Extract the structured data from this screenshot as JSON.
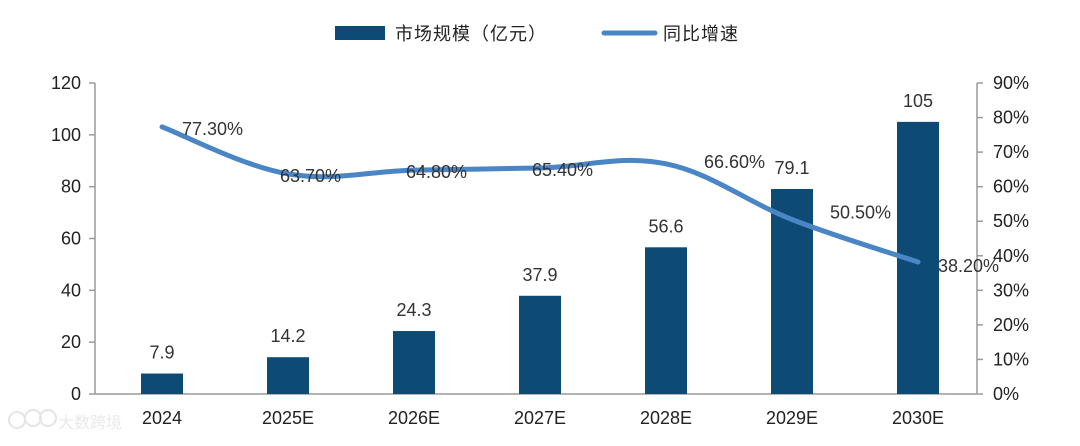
{
  "chart_data": {
    "type": "bar",
    "categories": [
      "2024",
      "2025E",
      "2026E",
      "2027E",
      "2028E",
      "2029E",
      "2030E"
    ],
    "series": [
      {
        "name": "市场规模（亿元）",
        "type": "bar",
        "axis": "left",
        "color": "#0d4a74",
        "values": [
          7.9,
          14.2,
          24.3,
          37.9,
          56.6,
          79.1,
          105
        ],
        "labels": [
          "7.9",
          "14.2",
          "24.3",
          "37.9",
          "56.6",
          "79.1",
          "105"
        ]
      },
      {
        "name": "同比增速",
        "type": "line",
        "axis": "right",
        "color": "#4a86c5",
        "values": [
          77.3,
          63.7,
          64.8,
          65.4,
          66.6,
          50.5,
          38.2
        ],
        "labels": [
          "77.30%",
          "63.70%",
          "64.80%",
          "65.40%",
          "66.60%",
          "50.50%",
          "38.20%"
        ]
      }
    ],
    "y_left": {
      "ylim": [
        0,
        120
      ],
      "ticks": [
        "0",
        "20",
        "40",
        "60",
        "80",
        "100",
        "120"
      ]
    },
    "y_right": {
      "ylim": [
        0,
        90
      ],
      "ticks": [
        "0%",
        "10%",
        "20%",
        "30%",
        "40%",
        "50%",
        "60%",
        "70%",
        "80%",
        "90%"
      ]
    },
    "legend_position": "top-center",
    "grid": false
  },
  "watermark": {
    "text": "大数跨境"
  }
}
